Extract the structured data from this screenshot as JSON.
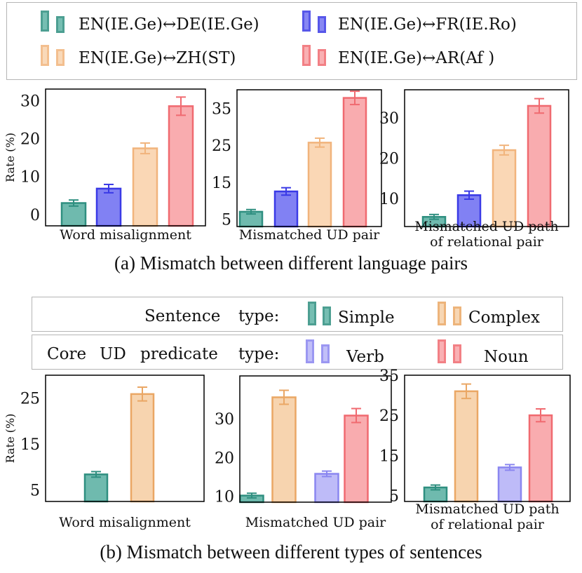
{
  "colors": {
    "teal": "#5fb3a5",
    "teal_edge": "#2f8f80",
    "blue": "#7373f2",
    "blue_edge": "#3a3ae6",
    "peach": "#f9d3ad",
    "peach_edge": "#f1b47c",
    "red": "#f8a3a6",
    "red_edge": "#f06a70",
    "lightblue": "#b7b4f7",
    "lightblue_edge": "#8a86f0",
    "orange": "#f6cfa6",
    "orange_edge": "#eaa765"
  },
  "legend_a": {
    "items": [
      {
        "label": "EN(IE.Ge)↔DE(IE.Ge)",
        "color": "teal"
      },
      {
        "label": "EN(IE.Ge)↔FR(IE.Ro)",
        "color": "blue"
      },
      {
        "label": "EN(IE.Ge)↔ZH(ST)",
        "color": "peach"
      },
      {
        "label": "EN(IE.Ge)↔AR(Af )",
        "color": "red"
      }
    ]
  },
  "caption_a": "(a) Mismatch between different language pairs",
  "legend_b": {
    "row1": {
      "prefix_1": "Sentence",
      "prefix_2": "type:",
      "items": [
        {
          "label": "Simple",
          "color": "teal"
        },
        {
          "label": "Complex",
          "color": "orange"
        }
      ]
    },
    "row2": {
      "prefix_1": "Core",
      "prefix_2": "UD",
      "prefix_3": "predicate",
      "prefix_4": "type:",
      "items": [
        {
          "label": "Verb",
          "color": "lightblue"
        },
        {
          "label": "Noun",
          "color": "red"
        }
      ]
    }
  },
  "caption_b": "(b) Mismatch between different types of sentences",
  "chart_data": [
    {
      "type": "bar",
      "id": "a1",
      "ylabel": "Rate (%)",
      "xlabel": [
        "Word misalignment"
      ],
      "ylim": [
        -3,
        33
      ],
      "yticks": [
        0,
        10,
        20,
        30
      ],
      "series": [
        {
          "name": "EN(IE.Ge)↔DE(IE.Ge)",
          "color": "teal",
          "value": 3,
          "err": 0.8
        },
        {
          "name": "EN(IE.Ge)↔FR(IE.Ro)",
          "color": "blue",
          "value": 6.8,
          "err": 1.1
        },
        {
          "name": "EN(IE.Ge)↔ZH(ST)",
          "color": "peach",
          "value": 17.4,
          "err": 1.4
        },
        {
          "name": "EN(IE.Ge)↔AR(Af )",
          "color": "red",
          "value": 28.5,
          "err": 2.4
        }
      ]
    },
    {
      "type": "bar",
      "id": "a2",
      "xlabel": [
        "Mismatched UD pair"
      ],
      "ylim": [
        3,
        40
      ],
      "yticks": [
        5,
        15,
        25,
        35
      ],
      "series": [
        {
          "name": "EN(IE.Ge)↔DE(IE.Ge)",
          "color": "teal",
          "value": 7,
          "err": 0.6
        },
        {
          "name": "EN(IE.Ge)↔FR(IE.Ro)",
          "color": "blue",
          "value": 12.5,
          "err": 1.0
        },
        {
          "name": "EN(IE.Ge)↔ZH(ST)",
          "color": "peach",
          "value": 25.7,
          "err": 1.2
        },
        {
          "name": "EN(IE.Ge)↔AR(Af )",
          "color": "red",
          "value": 37.8,
          "err": 1.8
        }
      ]
    },
    {
      "type": "bar",
      "id": "a3",
      "xlabel": [
        "Mismatched UD path",
        "of relational pair"
      ],
      "ylim": [
        3,
        37
      ],
      "yticks": [
        10,
        20,
        30
      ],
      "series": [
        {
          "name": "EN(IE.Ge)↔DE(IE.Ge)",
          "color": "teal",
          "value": 5.4,
          "err": 0.6
        },
        {
          "name": "EN(IE.Ge)↔FR(IE.Ro)",
          "color": "blue",
          "value": 10.8,
          "err": 1.0
        },
        {
          "name": "EN(IE.Ge)↔ZH(ST)",
          "color": "peach",
          "value": 22,
          "err": 1.2
        },
        {
          "name": "EN(IE.Ge)↔AR(Af )",
          "color": "red",
          "value": 33,
          "err": 1.8
        }
      ]
    },
    {
      "type": "bar",
      "id": "b1",
      "ylabel": "Rate (%)",
      "xlabel": [
        "Word misalignment"
      ],
      "ylim": [
        2.5,
        30
      ],
      "yticks": [
        5,
        15,
        25
      ],
      "series": [
        {
          "name": "Simple",
          "color": "teal",
          "value": 8.4,
          "err": 0.6,
          "slot": 0
        },
        {
          "name": "Complex",
          "color": "orange",
          "value": 25.9,
          "err": 1.5,
          "slot": 1
        }
      ]
    },
    {
      "type": "bar",
      "id": "b2",
      "xlabel": [
        "Mismatched UD pair"
      ],
      "ylim": [
        8.5,
        41
      ],
      "yticks": [
        10,
        20,
        30
      ],
      "series": [
        {
          "name": "Simple",
          "color": "teal",
          "value": 10.2,
          "err": 0.6,
          "slot": 0
        },
        {
          "name": "Complex",
          "color": "orange",
          "value": 35.5,
          "err": 1.8,
          "slot": 1
        },
        {
          "name": "Verb",
          "color": "lightblue",
          "value": 15.8,
          "err": 0.7,
          "slot": 2
        },
        {
          "name": "Noun",
          "color": "red",
          "value": 30.8,
          "err": 1.8,
          "slot": 3
        }
      ]
    },
    {
      "type": "bar",
      "id": "b3",
      "xlabel": [
        "Mismatched UD path",
        "of relational pair"
      ],
      "ylim": [
        3.5,
        35
      ],
      "yticks": [
        5,
        15,
        25,
        35
      ],
      "series": [
        {
          "name": "Simple",
          "color": "teal",
          "value": 7,
          "err": 0.6,
          "slot": 0
        },
        {
          "name": "Complex",
          "color": "orange",
          "value": 31,
          "err": 1.8,
          "slot": 1
        },
        {
          "name": "Verb",
          "color": "lightblue",
          "value": 12,
          "err": 0.7,
          "slot": 2
        },
        {
          "name": "Noun",
          "color": "red",
          "value": 25,
          "err": 1.6,
          "slot": 3
        }
      ]
    }
  ]
}
